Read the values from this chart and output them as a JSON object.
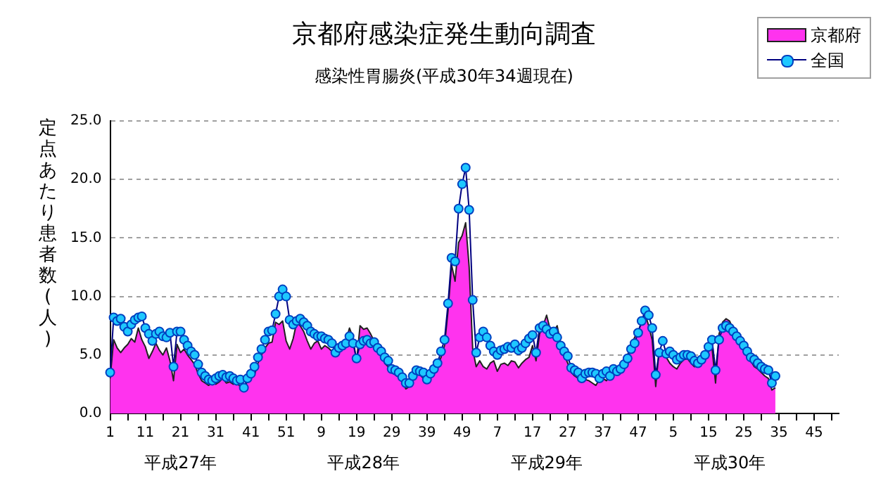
{
  "chart_data": {
    "type": "line",
    "title": "京都府感染症発生動向調査",
    "subtitle": "感染性胃腸炎(平成30年34週現在)",
    "ylabel": "定点あたり患者数(人)",
    "categories": [
      "1",
      null,
      null,
      null,
      null,
      null,
      null,
      null,
      null,
      null,
      "11",
      null,
      null,
      null,
      null,
      null,
      null,
      null,
      null,
      null,
      "21",
      null,
      null,
      null,
      null,
      null,
      null,
      null,
      null,
      null,
      "31",
      null,
      null,
      null,
      null,
      null,
      null,
      null,
      null,
      null,
      "41",
      null,
      null,
      null,
      null,
      null,
      null,
      null,
      null,
      null,
      "51",
      null,
      null,
      null,
      null,
      null,
      null,
      null,
      null,
      null,
      "9",
      null,
      null,
      null,
      null,
      null,
      null,
      null,
      null,
      null,
      "19",
      null,
      null,
      null,
      null,
      null,
      null,
      null,
      null,
      null,
      "29",
      null,
      null,
      null,
      null,
      null,
      null,
      null,
      null,
      null,
      "39",
      null,
      null,
      null,
      null,
      null,
      null,
      null,
      null,
      null,
      "49",
      null,
      null,
      null,
      null,
      null,
      null,
      null,
      null,
      null,
      "7",
      null,
      null,
      null,
      null,
      null,
      null,
      null,
      null,
      null,
      "17",
      null,
      null,
      null,
      null,
      null,
      null,
      null,
      null,
      null,
      "27",
      null,
      null,
      null,
      null,
      null,
      null,
      null,
      null,
      null,
      "37",
      null,
      null,
      null,
      null,
      null,
      null,
      null,
      null,
      null,
      "47",
      null,
      null,
      null,
      null,
      null,
      null,
      null,
      null,
      null,
      "5",
      null,
      null,
      null,
      null,
      null,
      null,
      null,
      null,
      null,
      "15",
      null,
      null,
      null,
      null,
      null,
      null,
      null,
      null,
      null,
      "25",
      null,
      null,
      null,
      null,
      null,
      null,
      null,
      null,
      null,
      "35",
      null,
      null,
      null,
      null,
      null,
      null,
      null,
      null,
      null,
      "45",
      null,
      null,
      null,
      null,
      null,
      null,
      null
    ],
    "series": [
      {
        "name": "京都府",
        "type": "area",
        "color": "#ff33ee",
        "values": [
          3.0,
          6.3,
          5.6,
          5.2,
          5.6,
          5.9,
          6.4,
          6.1,
          7.3,
          6.3,
          5.7,
          4.7,
          5.3,
          6.0,
          5.4,
          5.0,
          5.6,
          4.5,
          2.8,
          5.9,
          5.2,
          5.5,
          5.0,
          4.6,
          4.2,
          3.4,
          2.8,
          2.6,
          2.4,
          2.7,
          2.5,
          2.7,
          3.0,
          2.6,
          2.7,
          2.5,
          2.6,
          2.3,
          2.0,
          2.8,
          3.5,
          3.3,
          4.3,
          5.0,
          5.6,
          6.0,
          6.1,
          7.8,
          7.6,
          7.9,
          6.2,
          5.5,
          6.4,
          7.8,
          7.5,
          7.0,
          6.2,
          5.5,
          6.0,
          6.2,
          5.5,
          5.8,
          5.6,
          5.3,
          5.7,
          5.8,
          6.0,
          6.2,
          7.3,
          6.5,
          4.4,
          7.5,
          7.2,
          7.3,
          6.8,
          6.2,
          5.5,
          5.0,
          4.3,
          4.0,
          3.6,
          3.3,
          3.1,
          2.8,
          2.1,
          2.3,
          3.0,
          3.5,
          3.3,
          3.0,
          2.9,
          3.2,
          3.6,
          4.0,
          4.8,
          5.8,
          8.8,
          12.7,
          11.3,
          14.6,
          15.2,
          16.3,
          12.5,
          5.5,
          4.0,
          4.5,
          4.0,
          3.8,
          4.3,
          4.5,
          3.6,
          4.2,
          4.3,
          4.1,
          4.5,
          4.4,
          3.9,
          4.3,
          4.6,
          4.8,
          5.8,
          4.5,
          6.8,
          7.5,
          8.4,
          7.2,
          7.0,
          7.5,
          6.0,
          5.0,
          4.3,
          3.5,
          3.2,
          3.0,
          2.7,
          2.9,
          2.8,
          2.6,
          2.4,
          2.9,
          3.0,
          2.8,
          3.2,
          3.4,
          3.6,
          3.7,
          4.2,
          5.0,
          5.8,
          6.5,
          7.0,
          7.8,
          8.5,
          7.5,
          6.3,
          2.3,
          5.5,
          5.2,
          4.8,
          4.3,
          4.0,
          3.8,
          4.3,
          4.6,
          4.7,
          4.3,
          4.0,
          4.1,
          4.5,
          5.0,
          5.3,
          5.6,
          2.6,
          6.8,
          7.8,
          8.1,
          7.9,
          7.2,
          6.8,
          6.0,
          5.5,
          5.0,
          4.5,
          4.0,
          3.8,
          3.5,
          3.2,
          3.0,
          2.0,
          2.2,
          null,
          null,
          null,
          null,
          null,
          null,
          null,
          null,
          null,
          null,
          null,
          null,
          null,
          null,
          null,
          null,
          null,
          null
        ]
      },
      {
        "name": "全国",
        "type": "line",
        "color": "#1ec8ff",
        "marker": "circle",
        "values": [
          3.5,
          8.2,
          7.9,
          8.1,
          7.4,
          7.0,
          7.6,
          8.0,
          8.2,
          8.3,
          7.3,
          6.8,
          6.2,
          6.8,
          7.0,
          6.6,
          6.5,
          6.9,
          4.0,
          7.0,
          7.0,
          6.3,
          5.8,
          5.3,
          5.0,
          4.2,
          3.5,
          3.2,
          2.9,
          2.8,
          3.0,
          3.2,
          3.3,
          3.1,
          3.2,
          3.0,
          2.8,
          2.9,
          2.2,
          3.0,
          3.4,
          4.0,
          4.8,
          5.5,
          6.3,
          7.0,
          7.1,
          8.5,
          10.0,
          10.6,
          10.0,
          8.0,
          7.6,
          7.9,
          8.1,
          7.8,
          7.5,
          7.0,
          6.8,
          6.6,
          6.6,
          6.4,
          6.3,
          6.0,
          5.2,
          5.6,
          5.8,
          6.0,
          6.6,
          6.0,
          4.7,
          5.9,
          6.2,
          6.3,
          6.0,
          6.1,
          5.6,
          5.3,
          4.8,
          4.5,
          3.8,
          3.7,
          3.5,
          3.1,
          2.6,
          2.6,
          3.2,
          3.7,
          3.6,
          3.5,
          2.9,
          3.4,
          3.8,
          4.3,
          5.3,
          6.3,
          9.4,
          13.3,
          13.0,
          17.5,
          19.6,
          21.0,
          17.4,
          9.7,
          5.2,
          6.5,
          7.0,
          6.5,
          5.8,
          5.3,
          5.0,
          5.4,
          5.5,
          5.7,
          5.6,
          5.9,
          5.4,
          5.6,
          6.0,
          6.4,
          6.7,
          5.2,
          7.3,
          7.5,
          7.2,
          6.8,
          7.0,
          6.5,
          5.8,
          5.3,
          4.9,
          3.9,
          3.7,
          3.5,
          3.0,
          3.4,
          3.5,
          3.5,
          3.4,
          3.0,
          3.4,
          3.6,
          3.2,
          3.8,
          3.6,
          3.8,
          4.2,
          4.7,
          5.5,
          6.0,
          6.9,
          7.9,
          8.8,
          8.4,
          7.3,
          3.3,
          5.2,
          6.2,
          5.1,
          5.3,
          5.0,
          4.6,
          4.8,
          5.0,
          5.0,
          4.9,
          4.5,
          4.3,
          4.6,
          5.0,
          5.7,
          6.3,
          3.7,
          6.3,
          7.3,
          7.5,
          7.3,
          7.0,
          6.6,
          6.2,
          5.8,
          5.3,
          4.8,
          4.6,
          4.3,
          4.0,
          3.8,
          3.7,
          2.6,
          3.2,
          null,
          null,
          null,
          null,
          null,
          null,
          null,
          null,
          null,
          null,
          null,
          null,
          null,
          null,
          null,
          null,
          null,
          null
        ]
      }
    ],
    "ylim": [
      0,
      25
    ],
    "yticks": [
      {
        "value": 0,
        "label": "0.0"
      },
      {
        "value": 5,
        "label": "5.0"
      },
      {
        "value": 10,
        "label": "10.0"
      },
      {
        "value": 15,
        "label": "15.0"
      },
      {
        "value": 20,
        "label": "20.0"
      },
      {
        "value": 25,
        "label": "25.0"
      }
    ],
    "grid": "y",
    "legend": "top right",
    "annotations": [
      "平成27年",
      "平成28年",
      "平成29年",
      "平成30年"
    ]
  }
}
